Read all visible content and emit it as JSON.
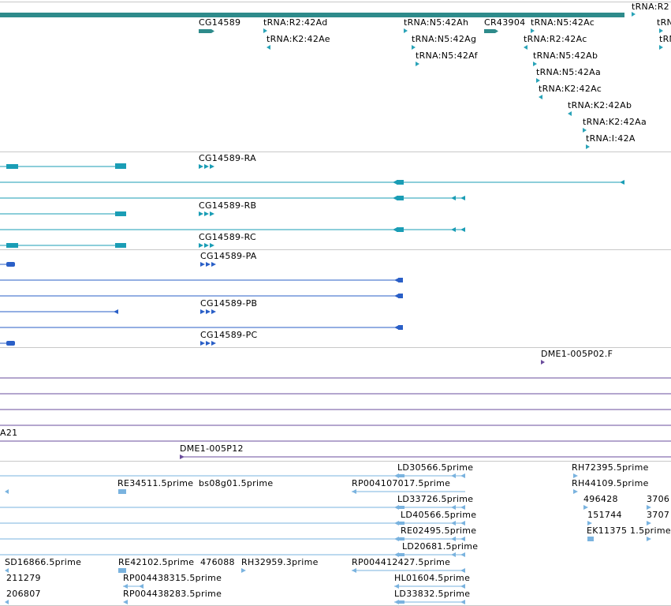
{
  "colors": {
    "gene": "#2e8b8b",
    "trna": "#2aa3b8",
    "transcript_a": "#1a9db5",
    "transcript_b": "#2a5fc7",
    "probe": "#6a4c9c",
    "est": "#7ab3df",
    "divider": "#c8c8c8"
  },
  "labels": {
    "gene_cg14589": "CG14589",
    "trna_r2_42ad": "tRNA:R2:42Ad",
    "trna_k2_42ae": "tRNA:K2:42Ae",
    "trna_n5_42ah": "tRNA:N5:42Ah",
    "trna_n5_42ag": "tRNA:N5:42Ag",
    "trna_n5_42af": "tRNA:N5:42Af",
    "gene_cr43904": "CR43904",
    "trna_n5_42ac": "tRNA:N5:42Ac",
    "trna_r2_42ac": "tRNA:R2:42Ac",
    "trna_n5_42ab": "tRNA:N5:42Ab",
    "trna_n5_42aa": "tRNA:N5:42Aa",
    "trna_k2_42ac": "tRNA:K2:42Ac",
    "trna_k2_42ab": "tRNA:K2:42Ab",
    "trna_k2_42aa": "tRNA:K2:42Aa",
    "trna_i_42a": "tRNA:I:42A",
    "trna_r2_edge": "tRNA:R2",
    "trna_edge1": "tRN",
    "trna_edge2": "tRN",
    "tx_ra": "CG14589-RA",
    "tx_rb": "CG14589-RB",
    "tx_rc": "CG14589-RC",
    "tx_pa": "CG14589-PA",
    "tx_pb": "CG14589-PB",
    "tx_pc": "CG14589-PC",
    "probe_f": "DME1-005P02.F",
    "probe_a21": "A21",
    "probe_p12": "DME1-005P12",
    "est_ld30566": "LD30566.5prime",
    "est_rh72395": "RH72395.5prime",
    "est_re34511": "RE34511.5prime",
    "est_bs08g01": "bs08g01.5prime",
    "est_rp004107017": "RP004107017.5prime",
    "est_rh44109": "RH44109.5prime",
    "est_ld33726": "LD33726.5prime",
    "est_496428": "496428",
    "est_3706": "3706",
    "est_ld40566": "LD40566.5prime",
    "est_151744": "151744",
    "est_3707": "3707",
    "est_re02495": "RE02495.5prime",
    "est_ek11375": "EK11375",
    "est_1_5prime": "1.5prime",
    "est_ld20681": "LD20681.5prime",
    "est_sd16866": "SD16866.5prime",
    "est_re42102": "RE42102.5prime",
    "est_476088": "476088",
    "est_rh32959": "RH32959.3prime",
    "est_rp004412427": "RP004412427.5prime",
    "est_211279": "211279",
    "est_rp004438315": "RP004438315.5prime",
    "est_hl01604": "HL01604.5prime",
    "est_206807": "206807",
    "est_rp004438283": "RP004438283.5prime",
    "est_ld33832": "LD33832.5prime"
  }
}
